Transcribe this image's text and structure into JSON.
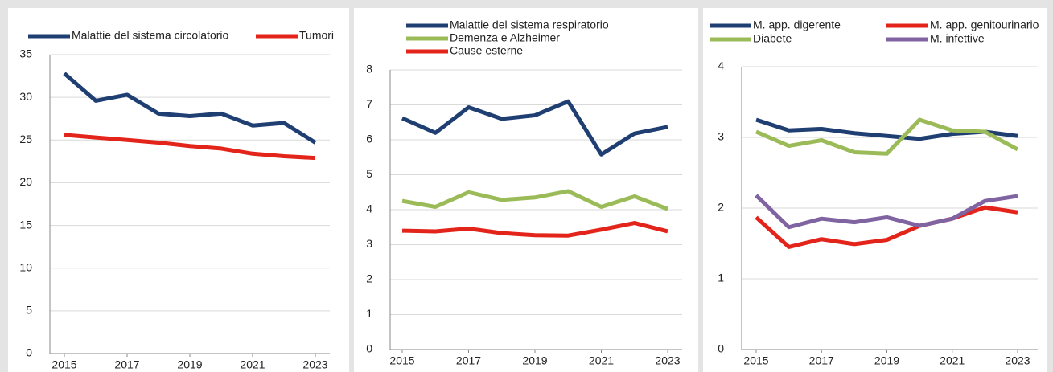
{
  "chart_data": [
    {
      "type": "line",
      "x": [
        2015,
        2016,
        2017,
        2018,
        2019,
        2020,
        2021,
        2022,
        2023
      ],
      "xticks": [
        2015,
        2017,
        2019,
        2021,
        2023
      ],
      "ylim": [
        0,
        35
      ],
      "yticks": [
        0,
        5,
        10,
        15,
        20,
        25,
        30,
        35
      ],
      "grid": true,
      "series": [
        {
          "name": "Malattie del sistema circolatorio",
          "color": "#1f3f73",
          "values": [
            32.8,
            29.6,
            30.3,
            28.1,
            27.8,
            28.1,
            26.7,
            27.0,
            24.7
          ]
        },
        {
          "name": "Tumori",
          "color": "#e3241b",
          "values": [
            25.6,
            25.3,
            25.0,
            24.7,
            24.3,
            24.0,
            23.4,
            23.1,
            22.9
          ]
        }
      ]
    },
    {
      "type": "line",
      "x": [
        2015,
        2016,
        2017,
        2018,
        2019,
        2020,
        2021,
        2022,
        2023
      ],
      "xticks": [
        2015,
        2017,
        2019,
        2021,
        2023
      ],
      "ylim": [
        0,
        8
      ],
      "yticks": [
        0,
        1,
        2,
        3,
        4,
        5,
        6,
        7,
        8
      ],
      "grid": true,
      "series": [
        {
          "name": "Malattie del sistema respiratorio",
          "color": "#1f3f73",
          "values": [
            6.62,
            6.2,
            6.93,
            6.6,
            6.7,
            7.1,
            5.58,
            6.18,
            6.37
          ]
        },
        {
          "name": "Demenza e Alzheimer",
          "color": "#9bbb59",
          "values": [
            4.25,
            4.08,
            4.5,
            4.28,
            4.35,
            4.53,
            4.08,
            4.38,
            4.02
          ]
        },
        {
          "name": "Cause esterne",
          "color": "#e3241b",
          "values": [
            3.4,
            3.38,
            3.46,
            3.33,
            3.27,
            3.26,
            3.43,
            3.62,
            3.38
          ]
        }
      ]
    },
    {
      "type": "line",
      "x": [
        2015,
        2016,
        2017,
        2018,
        2019,
        2020,
        2021,
        2022,
        2023
      ],
      "xticks": [
        2015,
        2017,
        2019,
        2021,
        2023
      ],
      "ylim": [
        0,
        4
      ],
      "yticks": [
        0,
        1,
        2,
        3,
        4
      ],
      "grid": true,
      "series": [
        {
          "name": "M. app. digerente",
          "color": "#1f3f73",
          "values": [
            3.25,
            3.1,
            3.12,
            3.06,
            3.02,
            2.98,
            3.05,
            3.08,
            3.02
          ]
        },
        {
          "name": "M. app. genitourinario",
          "color": "#e3241b",
          "values": [
            1.87,
            1.45,
            1.56,
            1.49,
            1.55,
            1.75,
            1.85,
            2.01,
            1.94
          ]
        },
        {
          "name": "Diabete",
          "color": "#9bbb59",
          "values": [
            3.08,
            2.88,
            2.96,
            2.79,
            2.77,
            3.25,
            3.1,
            3.08,
            2.83
          ]
        },
        {
          "name": "M. infettive",
          "color": "#8064a2",
          "values": [
            2.18,
            1.73,
            1.85,
            1.8,
            1.87,
            1.75,
            1.85,
            2.1,
            2.17
          ]
        }
      ]
    }
  ]
}
